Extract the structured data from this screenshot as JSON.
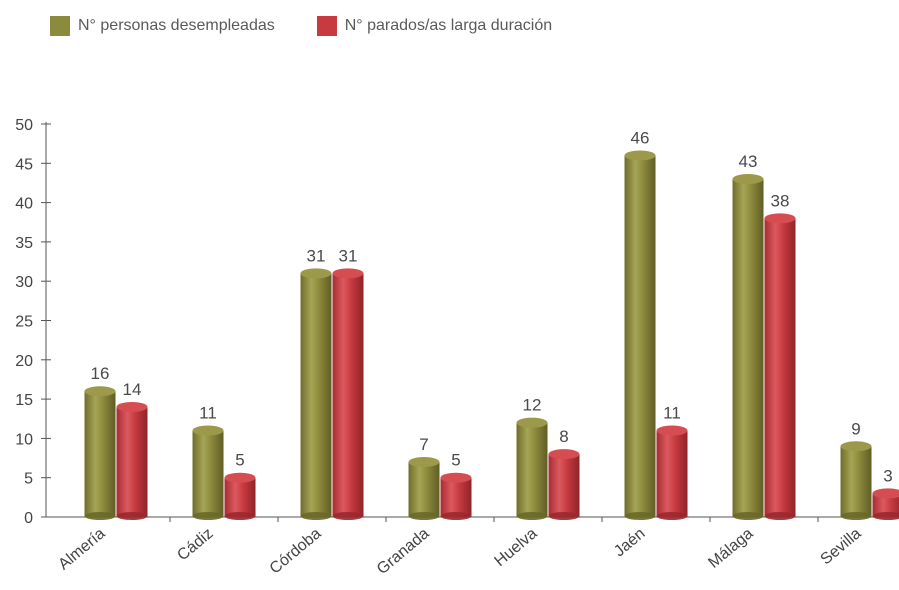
{
  "colors": {
    "series1": "#8c8a3c",
    "series2": "#c73a40",
    "axis": "#555555"
  },
  "chart_data": {
    "type": "bar",
    "categories": [
      "Almería",
      "Cádiz",
      "Córdoba",
      "Granada",
      "Huelva",
      "Jaén",
      "Málaga",
      "Sevilla"
    ],
    "series": [
      {
        "name": "N° personas desempleadas",
        "values": [
          16,
          11,
          31,
          7,
          12,
          46,
          43,
          9
        ]
      },
      {
        "name": "N° parados/as larga duración",
        "values": [
          14,
          5,
          31,
          5,
          8,
          11,
          38,
          3
        ]
      }
    ],
    "yticks": [
      0,
      5,
      10,
      15,
      20,
      25,
      30,
      35,
      40,
      45,
      50
    ],
    "ylim": [
      0,
      50
    ],
    "legend_position": "top-left",
    "grid": false
  }
}
